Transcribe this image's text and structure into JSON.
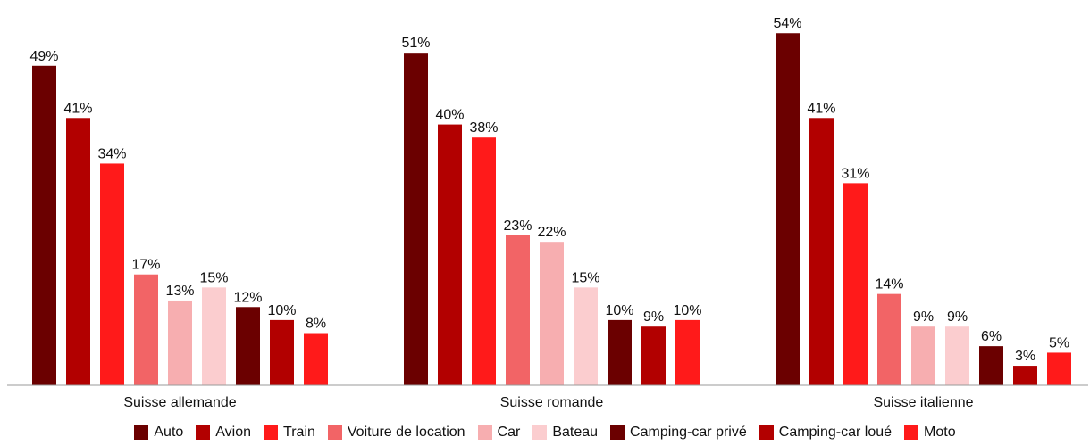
{
  "chart_data": {
    "type": "bar",
    "categories": [
      "Suisse allemande",
      "Suisse romande",
      "Suisse italienne"
    ],
    "series": [
      {
        "name": "Auto",
        "color": "#6b0000",
        "values": [
          49,
          51,
          54
        ],
        "labels": [
          "49%",
          "51%",
          "54%"
        ]
      },
      {
        "name": "Avion",
        "color": "#b20000",
        "values": [
          41,
          40,
          41
        ],
        "labels": [
          "41%",
          "40%",
          "41%"
        ]
      },
      {
        "name": "Train",
        "color": "#ff1a1a",
        "values": [
          34,
          38,
          31
        ],
        "labels": [
          "34%",
          "38%",
          "31%"
        ]
      },
      {
        "name": "Voiture de location",
        "color": "#f26466",
        "values": [
          17,
          23,
          14
        ],
        "labels": [
          "17%",
          "23%",
          "14%"
        ]
      },
      {
        "name": "Car",
        "color": "#f7aeb0",
        "values": [
          13,
          22,
          9
        ],
        "labels": [
          "13%",
          "22%",
          "9%"
        ]
      },
      {
        "name": "Bateau",
        "color": "#fbcdcf",
        "values": [
          15,
          15,
          9
        ],
        "labels": [
          "15%",
          "15%",
          "9%"
        ]
      },
      {
        "name": "Camping-car privé",
        "color": "#6b0000",
        "values": [
          12,
          10,
          6
        ],
        "labels": [
          "12%",
          "10%",
          "6%"
        ]
      },
      {
        "name": "Camping-car loué",
        "color": "#b20000",
        "values": [
          10,
          9,
          3
        ],
        "labels": [
          "10%",
          "9%",
          "3%"
        ]
      },
      {
        "name": "Moto",
        "color": "#ff1a1a",
        "values": [
          8,
          10,
          5
        ],
        "labels": [
          "8%",
          "10%",
          "5%"
        ]
      }
    ],
    "unit": "%",
    "ylim": [
      0,
      58
    ],
    "grid": false,
    "legend_position": "bottom"
  }
}
